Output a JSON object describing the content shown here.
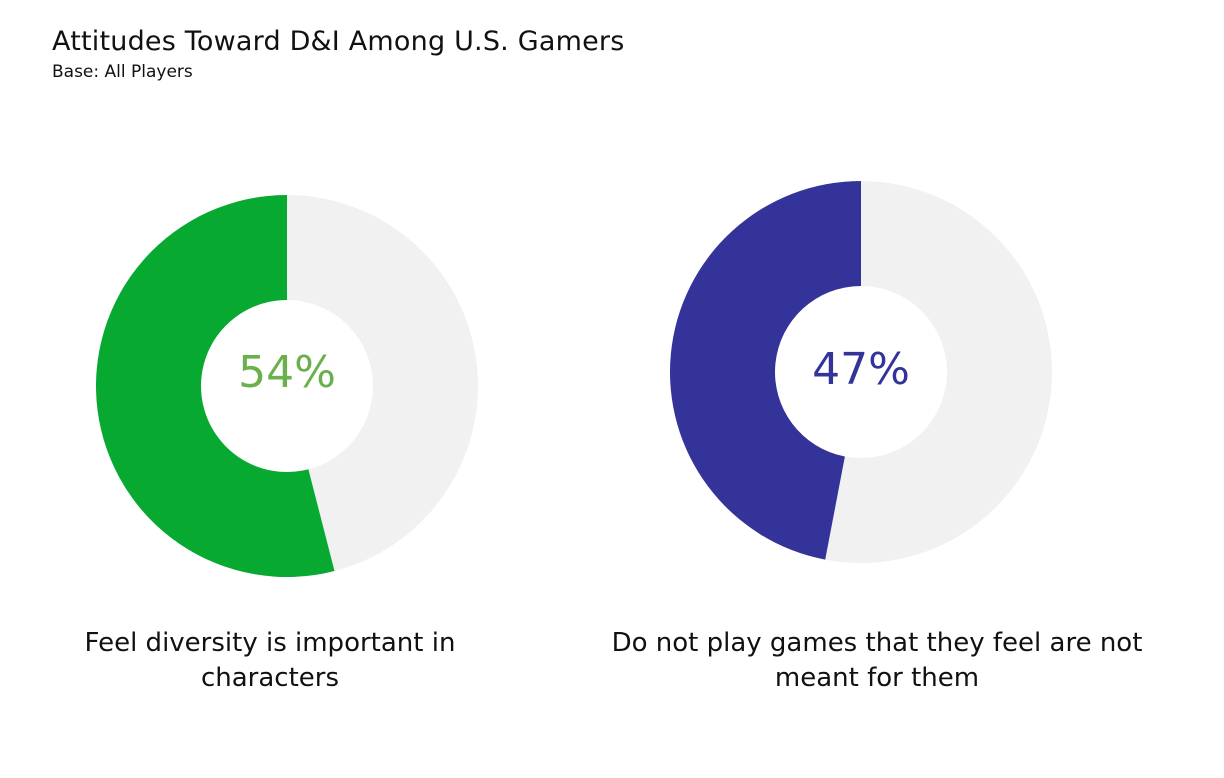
{
  "header": {
    "title": "Attitudes Toward D&I Among U.S. Gamers",
    "subtitle": "Base: All Players"
  },
  "colors": {
    "remainder": "#f1f1f1",
    "left_fill": "#07a931",
    "left_text": "#6ab04c",
    "right_fill": "#33339a",
    "right_text": "#33339a"
  },
  "chart_data": [
    {
      "type": "pie",
      "value": 54,
      "value_label": "54%",
      "caption": "Feel diversity is important in characters"
    },
    {
      "type": "pie",
      "value": 47,
      "value_label": "47%",
      "caption": "Do not play games that they feel are not meant for them"
    }
  ]
}
